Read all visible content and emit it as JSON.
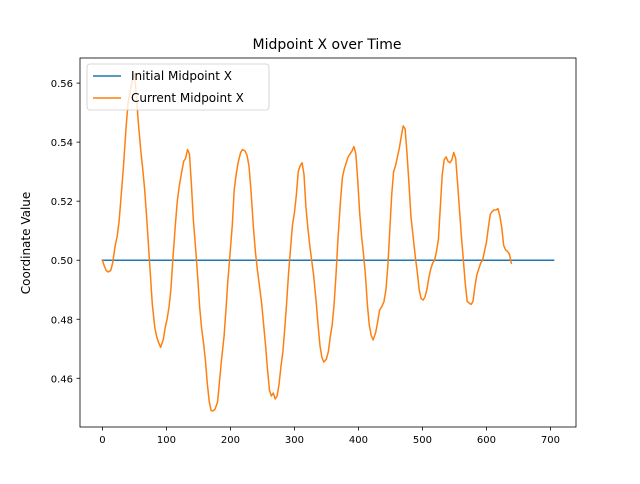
{
  "chart_data": {
    "type": "line",
    "title": "Midpoint X over Time",
    "xlabel": "",
    "ylabel": "Coordinate Value",
    "xlim": [
      -35,
      740
    ],
    "ylim": [
      0.4435,
      0.5685
    ],
    "xticks": [
      0,
      100,
      200,
      300,
      400,
      500,
      600,
      700
    ],
    "xtick_labels": [
      "0",
      "100",
      "200",
      "300",
      "400",
      "500",
      "600",
      "700"
    ],
    "yticks": [
      0.46,
      0.48,
      0.5,
      0.52,
      0.54,
      0.56
    ],
    "ytick_labels": [
      "0.46",
      "0.48",
      "0.50",
      "0.52",
      "0.54",
      "0.56"
    ],
    "grid": false,
    "legend_position": "top-left",
    "series": [
      {
        "name": "Initial Midpoint X",
        "color": "#1f77b4",
        "points": [
          [
            0,
            0.5
          ],
          [
            705,
            0.5
          ]
        ]
      },
      {
        "name": "Current Midpoint X",
        "color": "#ff7f0e",
        "points": [
          [
            0,
            0.5
          ],
          [
            3,
            0.498
          ],
          [
            6,
            0.4965
          ],
          [
            9,
            0.496
          ],
          [
            13,
            0.4965
          ],
          [
            16,
            0.499
          ],
          [
            20,
            0.505
          ],
          [
            23,
            0.508
          ],
          [
            26,
            0.513
          ],
          [
            29,
            0.521
          ],
          [
            33,
            0.532
          ],
          [
            37,
            0.545
          ],
          [
            40,
            0.553
          ],
          [
            44,
            0.558
          ],
          [
            48,
            0.562
          ],
          [
            50,
            0.563
          ],
          [
            53,
            0.556
          ],
          [
            56,
            0.547
          ],
          [
            60,
            0.537
          ],
          [
            63,
            0.531
          ],
          [
            66,
            0.524
          ],
          [
            69,
            0.515
          ],
          [
            72,
            0.505
          ],
          [
            75,
            0.495
          ],
          [
            78,
            0.485
          ],
          [
            82,
            0.477
          ],
          [
            85,
            0.474
          ],
          [
            88,
            0.472
          ],
          [
            91,
            0.4705
          ],
          [
            95,
            0.473
          ],
          [
            98,
            0.477
          ],
          [
            101,
            0.48
          ],
          [
            104,
            0.484
          ],
          [
            107,
            0.49
          ],
          [
            110,
            0.5
          ],
          [
            114,
            0.512
          ],
          [
            117,
            0.52
          ],
          [
            120,
            0.525
          ],
          [
            124,
            0.53
          ],
          [
            127,
            0.5335
          ],
          [
            130,
            0.5345
          ],
          [
            133,
            0.5375
          ],
          [
            136,
            0.536
          ],
          [
            139,
            0.526
          ],
          [
            142,
            0.514
          ],
          [
            146,
            0.503
          ],
          [
            149,
            0.494
          ],
          [
            152,
            0.484
          ],
          [
            155,
            0.477
          ],
          [
            158,
            0.472
          ],
          [
            161,
            0.466
          ],
          [
            164,
            0.458
          ],
          [
            167,
            0.452
          ],
          [
            170,
            0.449
          ],
          [
            173,
            0.449
          ],
          [
            176,
            0.4495
          ],
          [
            180,
            0.452
          ],
          [
            183,
            0.459
          ],
          [
            186,
            0.466
          ],
          [
            190,
            0.474
          ],
          [
            193,
            0.483
          ],
          [
            196,
            0.493
          ],
          [
            199,
            0.501
          ],
          [
            203,
            0.512
          ],
          [
            206,
            0.524
          ],
          [
            209,
            0.529
          ],
          [
            212,
            0.533
          ],
          [
            216,
            0.5365
          ],
          [
            219,
            0.5375
          ],
          [
            223,
            0.537
          ],
          [
            226,
            0.5355
          ],
          [
            229,
            0.532
          ],
          [
            232,
            0.524
          ],
          [
            236,
            0.511
          ],
          [
            239,
            0.503
          ],
          [
            242,
            0.497
          ],
          [
            245,
            0.492
          ],
          [
            249,
            0.485
          ],
          [
            252,
            0.478
          ],
          [
            255,
            0.471
          ],
          [
            258,
            0.463
          ],
          [
            261,
            0.456
          ],
          [
            264,
            0.454
          ],
          [
            267,
            0.455
          ],
          [
            270,
            0.453
          ],
          [
            273,
            0.454
          ],
          [
            276,
            0.458
          ],
          [
            279,
            0.464
          ],
          [
            282,
            0.469
          ],
          [
            285,
            0.477
          ],
          [
            288,
            0.486
          ],
          [
            291,
            0.496
          ],
          [
            294,
            0.504
          ],
          [
            297,
            0.512
          ],
          [
            300,
            0.516
          ],
          [
            303,
            0.522
          ],
          [
            306,
            0.53
          ],
          [
            309,
            0.532
          ],
          [
            312,
            0.533
          ],
          [
            315,
            0.529
          ],
          [
            318,
            0.518
          ],
          [
            321,
            0.511
          ],
          [
            324,
            0.505
          ],
          [
            327,
            0.5
          ],
          [
            330,
            0.495
          ],
          [
            334,
            0.486
          ],
          [
            337,
            0.478
          ],
          [
            340,
            0.471
          ],
          [
            343,
            0.467
          ],
          [
            346,
            0.4655
          ],
          [
            350,
            0.4665
          ],
          [
            353,
            0.469
          ],
          [
            356,
            0.474
          ],
          [
            359,
            0.478
          ],
          [
            362,
            0.485
          ],
          [
            365,
            0.495
          ],
          [
            368,
            0.507
          ],
          [
            372,
            0.52
          ],
          [
            375,
            0.528
          ],
          [
            378,
            0.531
          ],
          [
            381,
            0.533
          ],
          [
            384,
            0.535
          ],
          [
            387,
            0.536
          ],
          [
            390,
            0.537
          ],
          [
            393,
            0.5385
          ],
          [
            396,
            0.536
          ],
          [
            399,
            0.527
          ],
          [
            402,
            0.516
          ],
          [
            405,
            0.508
          ],
          [
            408,
            0.502
          ],
          [
            411,
            0.495
          ],
          [
            414,
            0.485
          ],
          [
            417,
            0.478
          ],
          [
            420,
            0.4745
          ],
          [
            423,
            0.473
          ],
          [
            427,
            0.4755
          ],
          [
            430,
            0.479
          ],
          [
            433,
            0.483
          ],
          [
            437,
            0.4845
          ],
          [
            440,
            0.486
          ],
          [
            443,
            0.49
          ],
          [
            446,
            0.498
          ],
          [
            449,
            0.51
          ],
          [
            452,
            0.522
          ],
          [
            455,
            0.53
          ],
          [
            458,
            0.532
          ],
          [
            461,
            0.535
          ],
          [
            464,
            0.538
          ],
          [
            467,
            0.542
          ],
          [
            470,
            0.5455
          ],
          [
            473,
            0.5445
          ],
          [
            476,
            0.536
          ],
          [
            479,
            0.526
          ],
          [
            482,
            0.515
          ],
          [
            486,
            0.507
          ],
          [
            489,
            0.501
          ],
          [
            492,
            0.496
          ],
          [
            495,
            0.49
          ],
          [
            498,
            0.487
          ],
          [
            501,
            0.4865
          ],
          [
            504,
            0.4875
          ],
          [
            507,
            0.49
          ],
          [
            510,
            0.494
          ],
          [
            513,
            0.497
          ],
          [
            516,
            0.499
          ],
          [
            519,
            0.5
          ],
          [
            522,
            0.503
          ],
          [
            525,
            0.507
          ],
          [
            528,
            0.518
          ],
          [
            531,
            0.529
          ],
          [
            534,
            0.534
          ],
          [
            537,
            0.535
          ],
          [
            540,
            0.5335
          ],
          [
            543,
            0.533
          ],
          [
            546,
            0.534
          ],
          [
            549,
            0.5365
          ],
          [
            552,
            0.5345
          ],
          [
            555,
            0.526
          ],
          [
            558,
            0.517
          ],
          [
            561,
            0.508
          ],
          [
            564,
            0.5
          ],
          [
            567,
            0.492
          ],
          [
            570,
            0.486
          ],
          [
            573,
            0.4855
          ],
          [
            576,
            0.485
          ],
          [
            579,
            0.486
          ],
          [
            582,
            0.491
          ],
          [
            585,
            0.495
          ],
          [
            588,
            0.497
          ],
          [
            591,
            0.499
          ],
          [
            594,
            0.5
          ],
          [
            597,
            0.503
          ],
          [
            600,
            0.506
          ],
          [
            603,
            0.511
          ],
          [
            606,
            0.5155
          ],
          [
            609,
            0.5165
          ],
          [
            612,
            0.517
          ],
          [
            615,
            0.517
          ],
          [
            618,
            0.5175
          ],
          [
            621,
            0.515
          ],
          [
            624,
            0.511
          ],
          [
            627,
            0.505
          ],
          [
            630,
            0.5035
          ],
          [
            633,
            0.503
          ],
          [
            636,
            0.502
          ],
          [
            639,
            0.499
          ]
        ]
      }
    ]
  }
}
